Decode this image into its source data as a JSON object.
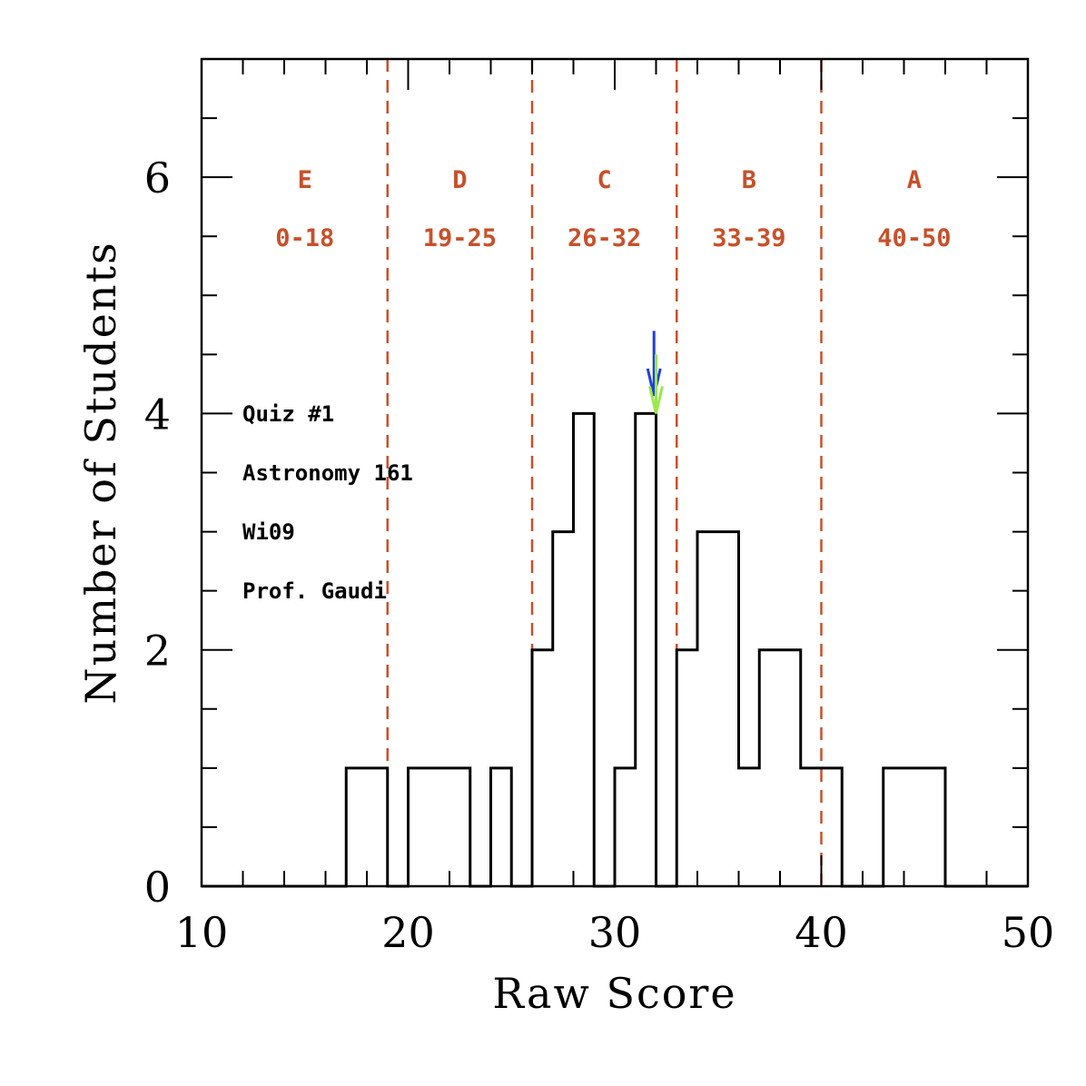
{
  "chart_data": {
    "type": "histogram",
    "xlabel": "Raw Score",
    "ylabel": "Number of Students",
    "xlim": [
      10,
      50
    ],
    "ylim": [
      0,
      7
    ],
    "x_ticks": [
      10,
      20,
      30,
      40,
      50
    ],
    "y_ticks": [
      0,
      2,
      4,
      6
    ],
    "grid": false,
    "bin_width": 1,
    "bins": [
      {
        "x": 10,
        "count": 0
      },
      {
        "x": 11,
        "count": 0
      },
      {
        "x": 12,
        "count": 0
      },
      {
        "x": 13,
        "count": 0
      },
      {
        "x": 14,
        "count": 0
      },
      {
        "x": 15,
        "count": 0
      },
      {
        "x": 16,
        "count": 0
      },
      {
        "x": 17,
        "count": 1
      },
      {
        "x": 18,
        "count": 1
      },
      {
        "x": 19,
        "count": 0
      },
      {
        "x": 20,
        "count": 1
      },
      {
        "x": 21,
        "count": 1
      },
      {
        "x": 22,
        "count": 1
      },
      {
        "x": 23,
        "count": 0
      },
      {
        "x": 24,
        "count": 1
      },
      {
        "x": 25,
        "count": 0
      },
      {
        "x": 26,
        "count": 2
      },
      {
        "x": 27,
        "count": 3
      },
      {
        "x": 28,
        "count": 4
      },
      {
        "x": 29,
        "count": 0
      },
      {
        "x": 30,
        "count": 1
      },
      {
        "x": 31,
        "count": 4
      },
      {
        "x": 32,
        "count": 0
      },
      {
        "x": 33,
        "count": 2
      },
      {
        "x": 34,
        "count": 3
      },
      {
        "x": 35,
        "count": 3
      },
      {
        "x": 36,
        "count": 1
      },
      {
        "x": 37,
        "count": 2
      },
      {
        "x": 38,
        "count": 2
      },
      {
        "x": 39,
        "count": 1
      },
      {
        "x": 40,
        "count": 1
      },
      {
        "x": 41,
        "count": 0
      },
      {
        "x": 42,
        "count": 0
      },
      {
        "x": 43,
        "count": 1
      },
      {
        "x": 44,
        "count": 1
      },
      {
        "x": 45,
        "count": 1
      },
      {
        "x": 46,
        "count": 0
      },
      {
        "x": 47,
        "count": 0
      },
      {
        "x": 48,
        "count": 0
      },
      {
        "x": 49,
        "count": 0
      }
    ],
    "grade_boundaries": [
      19,
      26,
      33,
      40
    ],
    "grades": [
      {
        "letter": "E",
        "range": "0-18",
        "x_center": 15
      },
      {
        "letter": "D",
        "range": "19-25",
        "x_center": 22.5
      },
      {
        "letter": "C",
        "range": "26-32",
        "x_center": 29.5
      },
      {
        "letter": "B",
        "range": "33-39",
        "x_center": 36.5
      },
      {
        "letter": "A",
        "range": "40-50",
        "x_center": 44.5
      }
    ],
    "annotations": [
      "Quiz #1",
      "Astronomy 161",
      "Wi09",
      "Prof. Gaudi"
    ],
    "markers": [
      {
        "x": 31.9,
        "y_top": 4.7,
        "y_tip": 4.15,
        "color": "#1f3fe0"
      },
      {
        "x": 32.0,
        "y_top": 4.5,
        "y_tip": 4.0,
        "color": "#9be84a"
      }
    ],
    "colors": {
      "histogram": "#000000",
      "boundary": "#c8502a",
      "grade_text": "#c8502a"
    }
  }
}
